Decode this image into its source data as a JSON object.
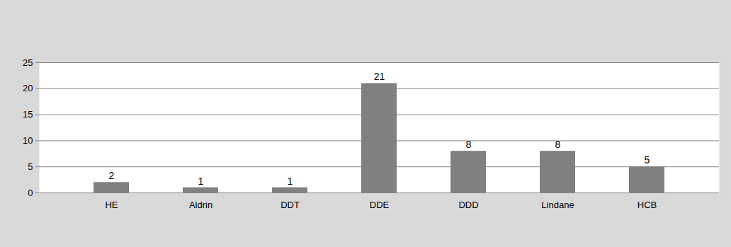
{
  "chart_data": {
    "type": "bar",
    "categories": [
      "HE",
      "Aldrin",
      "DDT",
      "DDE",
      "DDD",
      "Lindane",
      "HCB"
    ],
    "values": [
      2,
      1,
      1,
      21,
      8,
      8,
      5
    ],
    "color": "#808080",
    "ylim": [
      0,
      25
    ],
    "yticks": [
      0,
      5,
      10,
      15,
      20,
      25
    ],
    "grid": true,
    "data_labels": true
  }
}
